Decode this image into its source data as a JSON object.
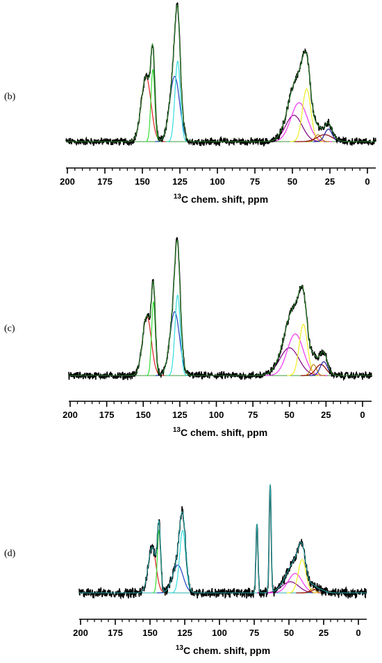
{
  "chart_data": [
    {
      "type": "line",
      "panel_label": "(b)",
      "xlabel_sup": "13",
      "xlabel": "C chem. shift, ppm",
      "x_ticks": [
        200,
        175,
        150,
        125,
        100,
        75,
        50,
        25,
        0
      ],
      "xlim": [
        200,
        0
      ],
      "ylim": [
        0,
        1.0
      ],
      "grid": false,
      "x_reversed": true,
      "noise_amplitude": 0.022,
      "experimental": {
        "color": "#000000"
      },
      "fit_envelope": {
        "color": "#2e8b2e"
      },
      "baseline": {
        "color": "#3a9a3a"
      },
      "components": [
        {
          "color": "#e0201f",
          "center": 147.5,
          "height": 0.47,
          "width": 3.2
        },
        {
          "color": "#33dd33",
          "center": 143.0,
          "height": 0.52,
          "width": 1.3
        },
        {
          "color": "#1f3fbf",
          "center": 128.5,
          "height": 0.47,
          "width": 3.3
        },
        {
          "color": "#33dddd",
          "center": 126.5,
          "height": 0.58,
          "width": 1.8
        },
        {
          "color": "#800080",
          "center": 49.0,
          "height": 0.19,
          "width": 5.5
        },
        {
          "color": "#ee33ee",
          "center": 45.5,
          "height": 0.28,
          "width": 5.5
        },
        {
          "color": "#eeee22",
          "center": 40.5,
          "height": 0.38,
          "width": 2.8
        },
        {
          "color": "#b8860b",
          "center": 33.0,
          "height": 0.05,
          "width": 2.0
        },
        {
          "color": "#8b0000",
          "center": 28.5,
          "height": 0.05,
          "width": 5.0
        },
        {
          "color": "#1f1f9f",
          "center": 26.0,
          "height": 0.09,
          "width": 2.5
        }
      ]
    },
    {
      "type": "line",
      "panel_label": "(c)",
      "xlabel_sup": "13",
      "xlabel": "C chem. shift, ppm",
      "x_ticks": [
        200,
        175,
        150,
        125,
        100,
        75,
        50,
        25,
        0
      ],
      "xlim": [
        200,
        0
      ],
      "ylim": [
        0,
        1.0
      ],
      "grid": false,
      "x_reversed": true,
      "noise_amplitude": 0.022,
      "experimental": {
        "color": "#000000"
      },
      "fit_envelope": {
        "color": "#2e8b2e"
      },
      "baseline": {
        "color": "#3a9a3a"
      },
      "components": [
        {
          "color": "#e0201f",
          "center": 147.5,
          "height": 0.43,
          "width": 3.0
        },
        {
          "color": "#33dd33",
          "center": 143.0,
          "height": 0.53,
          "width": 1.3
        },
        {
          "color": "#1f3fbf",
          "center": 128.5,
          "height": 0.46,
          "width": 3.3
        },
        {
          "color": "#33dddd",
          "center": 126.5,
          "height": 0.58,
          "width": 1.8
        },
        {
          "color": "#800080",
          "center": 50.0,
          "height": 0.2,
          "width": 6.5
        },
        {
          "color": "#ee33ee",
          "center": 46.0,
          "height": 0.3,
          "width": 5.5
        },
        {
          "color": "#eeee22",
          "center": 40.5,
          "height": 0.37,
          "width": 2.8
        },
        {
          "color": "#b8860b",
          "center": 33.5,
          "height": 0.08,
          "width": 2.0
        },
        {
          "color": "#8b0000",
          "center": 28.5,
          "height": 0.08,
          "width": 3.5
        },
        {
          "color": "#1f1f9f",
          "center": 26.5,
          "height": 0.1,
          "width": 2.5
        }
      ]
    },
    {
      "type": "line",
      "panel_label": "(d)",
      "xlabel_sup": "13",
      "xlabel": "C chem. shift, ppm",
      "x_ticks": [
        200,
        175,
        150,
        125,
        100,
        75,
        50,
        25,
        0
      ],
      "xlim": [
        200,
        0
      ],
      "ylim": [
        0,
        1.0
      ],
      "grid": false,
      "x_reversed": true,
      "noise_amplitude": 0.028,
      "experimental": {
        "color": "#000000"
      },
      "fit_envelope": {
        "color": "#2ab0b0"
      },
      "baseline": {
        "color": "#2ab0b0"
      },
      "components": [
        {
          "color": "#e0201f",
          "center": 148.5,
          "height": 0.33,
          "width": 2.8
        },
        {
          "color": "#33dd33",
          "center": 143.5,
          "height": 0.45,
          "width": 1.2
        },
        {
          "color": "#1f3fbf",
          "center": 130.0,
          "height": 0.2,
          "width": 3.8
        },
        {
          "color": "#33dddd",
          "center": 126.5,
          "height": 0.45,
          "width": 2.2
        },
        {
          "color": "#1a9a9a",
          "center": 73.0,
          "height": 0.5,
          "width": 0.7
        },
        {
          "color": "#1a9a9a",
          "center": 63.5,
          "height": 0.78,
          "width": 0.7
        },
        {
          "color": "#800080",
          "center": 49.0,
          "height": 0.08,
          "width": 6.0
        },
        {
          "color": "#ee33ee",
          "center": 45.5,
          "height": 0.14,
          "width": 5.0
        },
        {
          "color": "#eeee22",
          "center": 40.5,
          "height": 0.24,
          "width": 2.8
        },
        {
          "color": "#b8860b",
          "center": 33.0,
          "height": 0.03,
          "width": 2.0
        },
        {
          "color": "#8b0000",
          "center": 29.0,
          "height": 0.03,
          "width": 4.0
        }
      ]
    }
  ]
}
